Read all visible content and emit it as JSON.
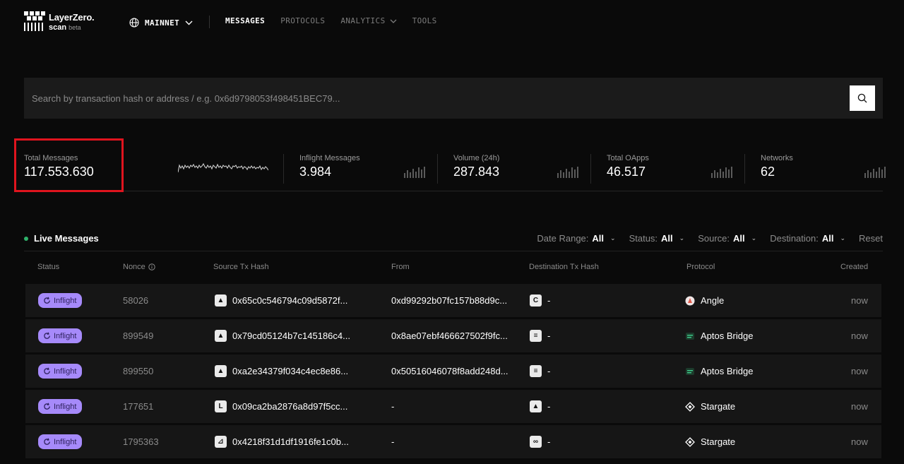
{
  "brand": {
    "name": "LayerZero.",
    "sub": "scan",
    "beta": "beta"
  },
  "header": {
    "network": "MAINNET",
    "nav": [
      {
        "label": "MESSAGES",
        "active": true
      },
      {
        "label": "PROTOCOLS"
      },
      {
        "label": "ANALYTICS",
        "dropdown": true
      },
      {
        "label": "TOOLS"
      }
    ]
  },
  "search": {
    "placeholder": "Search by transaction hash or address / e.g. 0x6d9798053f498451BEC79..."
  },
  "stats": [
    {
      "label": "Total Messages",
      "value": "117.553.630"
    },
    {
      "label": "Inflight Messages",
      "value": "3.984"
    },
    {
      "label": "Volume (24h)",
      "value": "287.843"
    },
    {
      "label": "Total OApps",
      "value": "46.517"
    },
    {
      "label": "Networks",
      "value": "62"
    }
  ],
  "live": {
    "title": "Live Messages"
  },
  "filters": [
    {
      "label": "Date Range:",
      "value": "All"
    },
    {
      "label": "Status:",
      "value": "All"
    },
    {
      "label": "Source:",
      "value": "All"
    },
    {
      "label": "Destination:",
      "value": "All"
    }
  ],
  "reset_label": "Reset",
  "table": {
    "columns": [
      "Status",
      "Nonce",
      "Source Tx Hash",
      "From",
      "Destination Tx Hash",
      "Protocol",
      "Created"
    ],
    "rows": [
      {
        "status": "Inflight",
        "nonce": "58026",
        "src_hash": "0x65c0c546794c09d5872f...",
        "from": "0xd99292b07fc157b88d9c...",
        "dst_hash": "-",
        "protocol": "Angle",
        "created": "now"
      },
      {
        "status": "Inflight",
        "nonce": "899549",
        "src_hash": "0x79cd05124b7c145186c4...",
        "from": "0x8ae07ebf466627502f9fc...",
        "dst_hash": "-",
        "protocol": "Aptos Bridge",
        "created": "now"
      },
      {
        "status": "Inflight",
        "nonce": "899550",
        "src_hash": "0xa2e34379f034c4ec8e86...",
        "from": "0x50516046078f8add248d...",
        "dst_hash": "-",
        "protocol": "Aptos Bridge",
        "created": "now"
      },
      {
        "status": "Inflight",
        "nonce": "177651",
        "src_hash": "0x09ca2ba2876a8d97f5cc...",
        "from": "-",
        "dst_hash": "-",
        "protocol": "Stargate",
        "created": "now"
      },
      {
        "status": "Inflight",
        "nonce": "1795363",
        "src_hash": "0x4218f31d1df1916fe1c0b...",
        "from": "-",
        "dst_hash": "-",
        "protocol": "Stargate",
        "created": "now"
      }
    ]
  }
}
